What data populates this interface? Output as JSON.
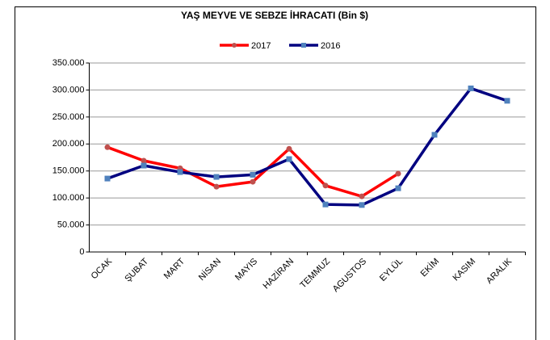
{
  "chart_data": {
    "type": "line",
    "title": "YAŞ MEYVE  VE SEBZE  İHRACATI  (Bin $)",
    "categories": [
      "OCAK",
      "ŞUBAT",
      "MART",
      "NİSAN",
      "MAYIS",
      "HAZİRAN",
      "TEMMUZ",
      "AGUSTOS",
      "EYLÜL",
      "EKİM",
      "KASIM",
      "ARALIK"
    ],
    "series": [
      {
        "name": "2017",
        "color": "#ff0000",
        "marker_color": "#c0504d",
        "marker": "circle",
        "values": [
          194000,
          169000,
          155000,
          121000,
          130000,
          191000,
          123000,
          103000,
          145000,
          null,
          null,
          null
        ]
      },
      {
        "name": "2016",
        "color": "#000080",
        "marker_color": "#4f81bd",
        "marker": "square",
        "values": [
          136000,
          160000,
          148000,
          139000,
          143000,
          172000,
          88000,
          87000,
          118000,
          217000,
          303000,
          280000
        ]
      }
    ],
    "ylim": [
      0,
      350000
    ],
    "yticks": [
      0,
      {
        "value": 50000,
        "label": "50.000"
      },
      {
        "value": 100000,
        "label": "100.000"
      },
      {
        "value": 150000,
        "label": "150.000"
      },
      {
        "value": 200000,
        "label": "200.000"
      },
      {
        "value": 250000,
        "label": "250.000"
      },
      {
        "value": 300000,
        "label": "300.000"
      },
      {
        "value": 350000,
        "label": "350.000"
      }
    ],
    "grid": true,
    "legend": "top"
  }
}
